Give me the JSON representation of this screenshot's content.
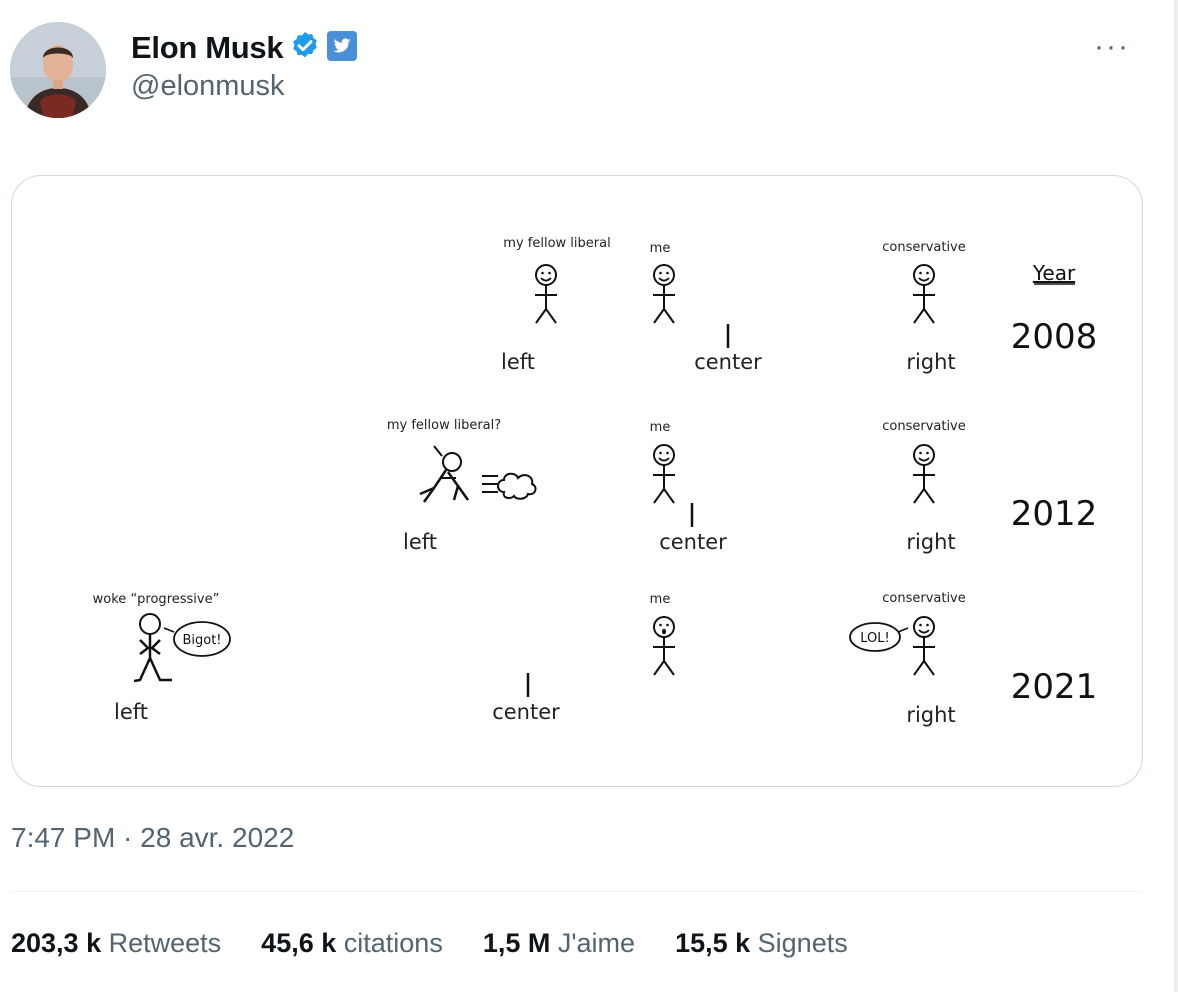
{
  "author": {
    "name": "Elon Musk",
    "handle": "@elonmusk"
  },
  "more_icon": "more-horizontal-icon",
  "verified_icon": "verified-badge-icon",
  "twitter_icon": "twitter-bird-icon",
  "media": {
    "year_header": "Year",
    "rows": [
      {
        "year": "2008",
        "left": "left",
        "center": "center",
        "right": "right",
        "liberal_label": "my fellow liberal",
        "me_label": "me",
        "conservative_label": "conservative"
      },
      {
        "year": "2012",
        "left": "left",
        "center": "center",
        "right": "right",
        "liberal_label": "my fellow liberal?",
        "me_label": "me",
        "conservative_label": "conservative"
      },
      {
        "year": "2021",
        "left": "left",
        "center": "center",
        "right": "right",
        "liberal_label": "woke “progressive”",
        "me_label": "me",
        "conservative_label": "conservative",
        "bigot_bubble": "Bigot!",
        "lol_bubble": "LOL!"
      }
    ]
  },
  "timestamp": "7:47 PM · 28 avr. 2022",
  "stats": [
    {
      "num": "203,3 k",
      "label": "Retweets"
    },
    {
      "num": "45,6 k",
      "label": "citations"
    },
    {
      "num": "1,5 M",
      "label": "J'aime"
    },
    {
      "num": "15,5 k",
      "label": "Signets"
    }
  ],
  "colors": {
    "left_blue": "#4a6fb3",
    "right_red": "#c9413d",
    "twitter_blue": "#1d9bf0",
    "secondary_text": "#536471"
  }
}
